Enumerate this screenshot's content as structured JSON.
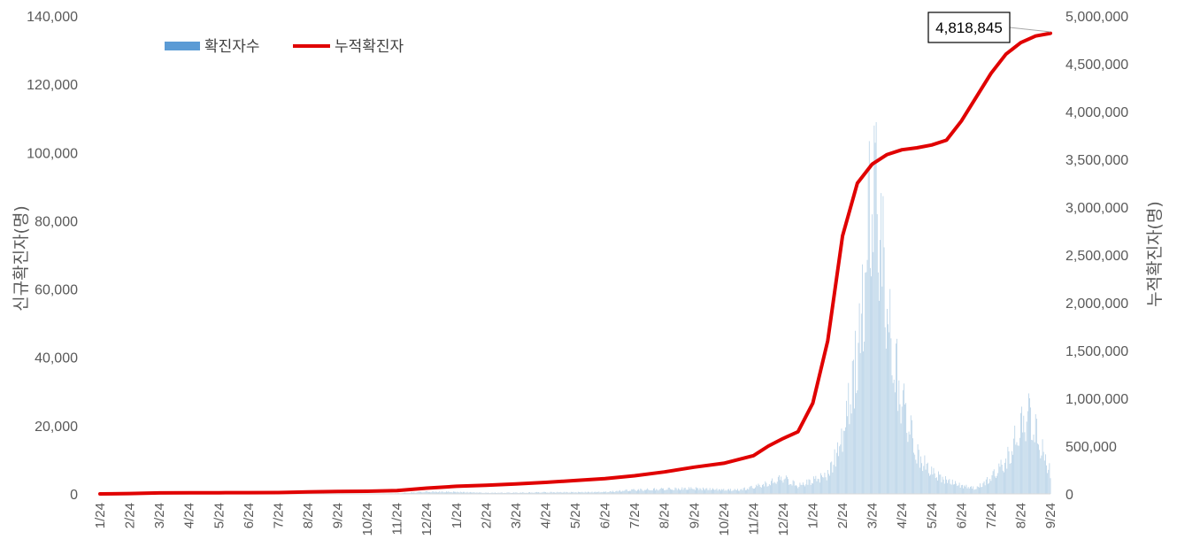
{
  "chart_data": {
    "type": "bar+line",
    "title": "",
    "y_left_label": "신규확진자(명)",
    "y_right_label": "누적확진자(명)",
    "y_left_lim": [
      0,
      140000
    ],
    "y_right_lim": [
      0,
      5000000
    ],
    "y_left_ticks": [
      "0",
      "20,000",
      "40,000",
      "60,000",
      "80,000",
      "100,000",
      "120,000",
      "140,000"
    ],
    "y_right_ticks": [
      "0",
      "500,000",
      "1,000,000",
      "1,500,000",
      "2,000,000",
      "2,500,000",
      "3,000,000",
      "3,500,000",
      "4,000,000",
      "4,500,000",
      "5,000,000"
    ],
    "x_tick_labels": [
      "1/24",
      "2/24",
      "3/24",
      "4/24",
      "5/24",
      "6/24",
      "7/24",
      "8/24",
      "9/24",
      "10/24",
      "11/24",
      "12/24",
      "1/24",
      "2/24",
      "3/24",
      "4/24",
      "5/24",
      "6/24",
      "7/24",
      "8/24",
      "9/24",
      "10/24",
      "11/24",
      "12/24",
      "1/24",
      "2/24",
      "3/24",
      "4/24",
      "5/24",
      "6/24",
      "7/24",
      "8/24",
      "9/24"
    ],
    "legend": {
      "placement": "top-left",
      "bar_label": "확진자수",
      "line_label": "누적확진자"
    },
    "colors": {
      "bar": "#5b9bd5",
      "bar_fill": "#b4d0e6",
      "line": "#e00000"
    },
    "series": [
      {
        "name": "확진자수",
        "type": "bar",
        "axis": "left",
        "x_month_index": [
          0,
          1,
          2,
          3,
          4,
          5,
          6,
          7,
          8,
          9,
          10,
          11,
          12,
          13,
          14,
          15,
          16,
          17,
          18,
          19,
          20,
          21,
          21.5,
          22,
          22.5,
          23,
          23.5,
          24,
          24.5,
          25,
          25.4,
          25.7,
          26,
          26.3,
          26.6,
          27,
          27.5,
          28,
          28.5,
          29,
          29.5,
          30,
          30.5,
          30.8,
          31,
          31.3,
          31.6,
          32
        ],
        "values": [
          0,
          80,
          500,
          300,
          40,
          40,
          50,
          200,
          150,
          100,
          200,
          800,
          700,
          400,
          450,
          600,
          600,
          700,
          1500,
          1800,
          2000,
          1500,
          1500,
          2500,
          4000,
          6000,
          3000,
          5000,
          7000,
          20000,
          45000,
          70000,
          120000,
          95000,
          60000,
          35000,
          15000,
          8000,
          5000,
          3000,
          2000,
          6000,
          12000,
          20000,
          25000,
          30000,
          20000,
          8000
        ]
      },
      {
        "name": "누적확진자",
        "type": "line",
        "axis": "right",
        "x_month_index": [
          0,
          1,
          2,
          3,
          4,
          5,
          6,
          7,
          8,
          9,
          10,
          11,
          12,
          13,
          14,
          15,
          16,
          17,
          18,
          19,
          20,
          21,
          22,
          22.5,
          23,
          23.5,
          24,
          24.5,
          25,
          25.5,
          26,
          26.5,
          27,
          27.5,
          28,
          28.5,
          29,
          29.5,
          30,
          30.5,
          31,
          31.5,
          32
        ],
        "values": [
          0,
          4000,
          10000,
          12000,
          12000,
          13000,
          14000,
          20000,
          25000,
          28000,
          35000,
          60000,
          80000,
          90000,
          105000,
          120000,
          140000,
          160000,
          190000,
          230000,
          280000,
          320000,
          400000,
          500000,
          580000,
          650000,
          950000,
          1600000,
          2700000,
          3250000,
          3450000,
          3550000,
          3600000,
          3620000,
          3650000,
          3700000,
          3900000,
          4150000,
          4400000,
          4600000,
          4720000,
          4790000,
          4818845
        ]
      }
    ],
    "annotations": [
      {
        "text": "4,818,845",
        "target_series": "누적확진자",
        "target_point": "last"
      }
    ]
  }
}
